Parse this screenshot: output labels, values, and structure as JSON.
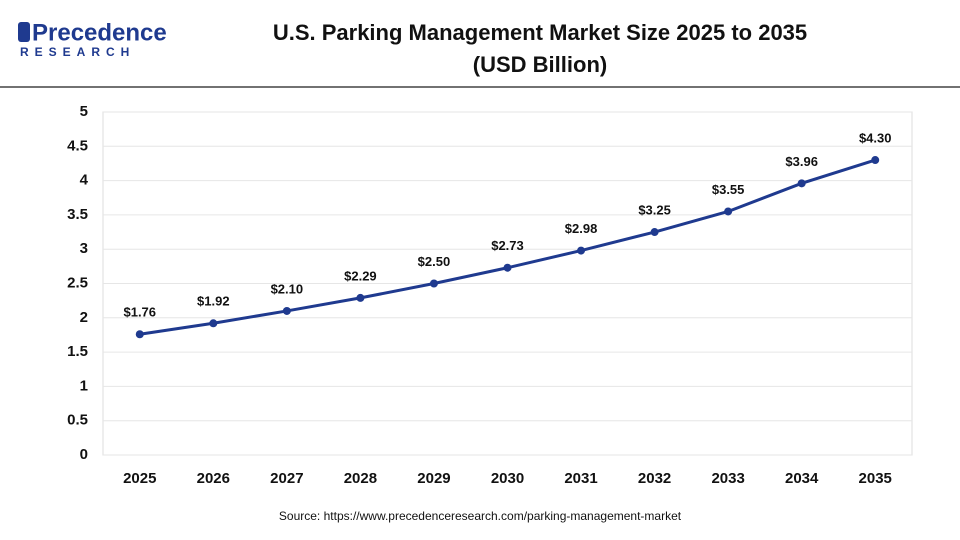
{
  "logo": {
    "name": "Precedence",
    "tagline": "RESEARCH"
  },
  "chart_data": {
    "type": "line",
    "title": "U.S. Parking Management Market Size 2025 to 2035",
    "subtitle": "(USD Billion)",
    "categories": [
      "2025",
      "2026",
      "2027",
      "2028",
      "2029",
      "2030",
      "2031",
      "2032",
      "2033",
      "2034",
      "2035"
    ],
    "series": [
      {
        "name": "U.S. Parking Management Market Size",
        "color": "#1f3a8f",
        "values": [
          1.76,
          1.92,
          2.1,
          2.29,
          2.5,
          2.73,
          2.98,
          3.25,
          3.55,
          3.96,
          4.3
        ],
        "value_labels": [
          "$1.76",
          "$1.92",
          "$2.10",
          "$2.29",
          "$2.50",
          "$2.73",
          "$2.98",
          "$3.25",
          "$3.55",
          "$3.96",
          "$4.30"
        ]
      }
    ],
    "ylim": [
      0,
      5
    ],
    "yticks": [
      0,
      0.5,
      1,
      1.5,
      2,
      2.5,
      3,
      3.5,
      4,
      4.5,
      5
    ],
    "grid": true,
    "source": "Source: https://www.precedenceresearch.com/parking-management-market"
  }
}
